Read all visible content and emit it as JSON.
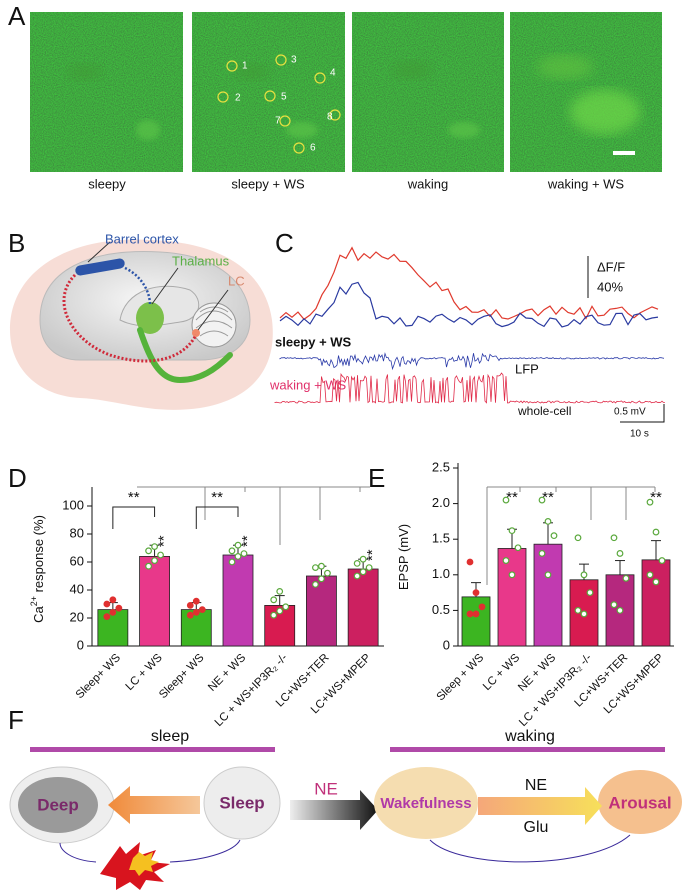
{
  "panels": {
    "a": {
      "letter": "A",
      "captions": [
        "sleepy",
        "sleepy + WS",
        "waking",
        "waking + WS"
      ],
      "rois": [
        "1",
        "2",
        "3",
        "4",
        "5",
        "6",
        "7",
        "8"
      ]
    },
    "b": {
      "letter": "B",
      "labels": {
        "cortex": "Barrel cortex",
        "thalamus": "Thalamus",
        "lc": "LC"
      }
    },
    "c": {
      "letter": "C",
      "dff": "ΔF/F",
      "dff_scale": "40%",
      "sleepy": "sleepy + WS",
      "lfp": "LFP",
      "waking": "waking + WS",
      "wholecell": "whole-cell",
      "mv_scale": "0.5 mV",
      "time_scale": "10 s"
    },
    "d": {
      "letter": "D"
    },
    "e": {
      "letter": "E"
    },
    "f": {
      "letter": "F",
      "sleep": "sleep",
      "waking": "waking",
      "deep": "Deep",
      "sleep_node": "Sleep",
      "ne_mid": "NE",
      "wakefulness": "Wakefulness",
      "ne": "NE",
      "glu": "Glu",
      "arousal": "Arousal"
    }
  },
  "chart_data": [
    {
      "type": "bar",
      "ylabel": {
        "base": "Ca",
        "sup": "2+",
        "rest": " response (%)"
      },
      "categories": [
        "Sleep+ WS",
        "LC + WS",
        "Sleep+ WS",
        "NE + WS",
        "LC + WS+IP3R₂ -/-",
        "LC+WS+TER",
        "LC+WS+MPEP"
      ],
      "values": [
        26,
        64,
        26,
        65,
        29,
        50,
        55
      ],
      "errors": [
        5,
        8,
        5,
        7,
        7,
        7,
        7
      ],
      "colors": [
        "#3cb521",
        "#e8388a",
        "#3cb521",
        "#c13ab0",
        "#d81b50",
        "#b5287e",
        "#cc2060"
      ],
      "point_colors": [
        "#e03030",
        "#5aa83c",
        "#e03030",
        "#5aa83c",
        "#5aa83c",
        "#5aa83c",
        "#5aa83c"
      ],
      "points": [
        [
          21,
          24,
          27,
          30,
          33
        ],
        [
          57,
          61,
          65,
          68,
          71
        ],
        [
          22,
          24,
          26,
          29,
          32
        ],
        [
          60,
          64,
          66,
          68,
          72
        ],
        [
          22,
          25,
          28,
          33,
          39
        ],
        [
          44,
          48,
          52,
          56,
          57
        ],
        [
          50,
          53,
          56,
          59,
          62
        ]
      ],
      "significance": [
        null,
        "**",
        null,
        "**",
        null,
        null,
        "**"
      ],
      "bracket_labels": [
        "**",
        "**"
      ],
      "ylim": [
        0,
        110
      ],
      "yticks": [
        0,
        20,
        40,
        60,
        80,
        100
      ]
    },
    {
      "type": "bar",
      "ylabel": {
        "base": "EPSP  (mV)",
        "sup": "",
        "rest": ""
      },
      "categories": [
        "Sleep + WS",
        "LC + WS",
        "NE + WS",
        "LC + WS+IP3R₂ -/-",
        "LC+WS+TER",
        "LC+WS+MPEP"
      ],
      "values": [
        0.69,
        1.37,
        1.43,
        0.93,
        1.0,
        1.21
      ],
      "errors": [
        0.2,
        0.27,
        0.3,
        0.22,
        0.2,
        0.27
      ],
      "colors": [
        "#3cb521",
        "#e8388a",
        "#c13ab0",
        "#d81b50",
        "#b5287e",
        "#cc2060"
      ],
      "point_colors": [
        "#e03030",
        "#5aa83c",
        "#5aa83c",
        "#5aa83c",
        "#5aa83c",
        "#5aa83c"
      ],
      "points": [
        [
          1.18,
          0.75,
          0.55,
          0.45,
          0.45
        ],
        [
          2.05,
          1.62,
          1.38,
          1.2,
          1.0
        ],
        [
          2.05,
          1.75,
          1.55,
          1.3,
          1.0
        ],
        [
          1.52,
          1.0,
          0.75,
          0.5,
          0.45
        ],
        [
          1.52,
          1.3,
          0.95,
          0.58,
          0.5
        ],
        [
          2.02,
          1.6,
          1.2,
          1.0,
          0.9
        ]
      ],
      "significance": [
        null,
        "**",
        "**",
        null,
        null,
        "**"
      ],
      "bracket_labels": [],
      "ylim": [
        0,
        2.5
      ],
      "yticks": [
        0,
        0.5,
        {
          "value": 1,
          "label": "1.0"
        },
        1.5,
        {
          "value": 2,
          "label": "2.0"
        },
        2.5
      ]
    }
  ]
}
